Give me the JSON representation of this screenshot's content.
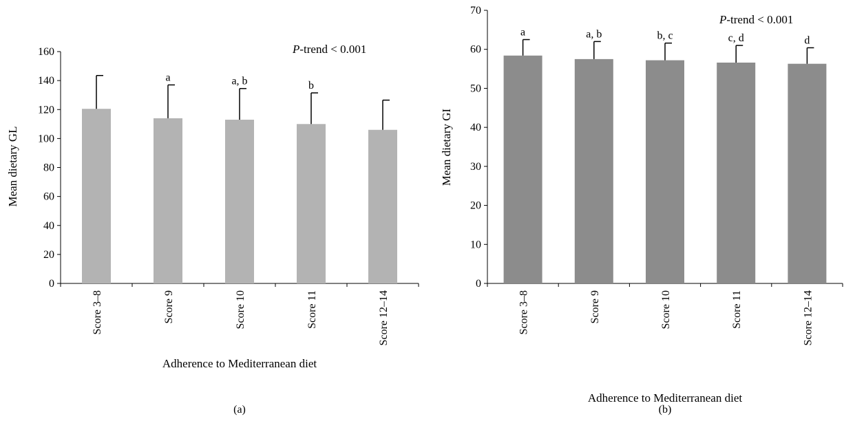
{
  "figure": {
    "panel_labels": [
      "(a)",
      "(b)"
    ]
  },
  "chart_data": [
    {
      "type": "bar",
      "panel": "(a)",
      "xlabel": "Adherence to Mediterranean diet",
      "ylabel": "Mean dietary GL",
      "categories": [
        "Score 3–8",
        "Score 9",
        "Score 10",
        "Score 11",
        "Score 12–14"
      ],
      "values": [
        120.5,
        114,
        113,
        110,
        106
      ],
      "error_upper": [
        143.5,
        137,
        134.5,
        131.5,
        126.5
      ],
      "bar_annotations": [
        "",
        "a",
        "a, b",
        "b",
        ""
      ],
      "ylim": [
        0,
        160
      ],
      "yticks": [
        0,
        20,
        40,
        60,
        80,
        100,
        120,
        140,
        160
      ],
      "annotation_prefix": "P",
      "annotation_text": "-trend < 0.001",
      "bar_color": "#b3b3b3",
      "grid": false
    },
    {
      "type": "bar",
      "panel": "(b)",
      "xlabel": "Adherence to Mediterranean diet",
      "ylabel": "Mean dietary GI",
      "categories": [
        "Score 3–8",
        "Score 9",
        "Score 10",
        "Score 11",
        "Score 12–14"
      ],
      "values": [
        58.4,
        57.5,
        57.2,
        56.6,
        56.3
      ],
      "error_upper": [
        62.5,
        62,
        61.6,
        61,
        60.4
      ],
      "bar_annotations": [
        "a",
        "a, b",
        "b, c",
        "c, d",
        "d"
      ],
      "ylim": [
        0,
        70
      ],
      "yticks": [
        0,
        10,
        20,
        30,
        40,
        50,
        60,
        70
      ],
      "annotation_prefix": "P",
      "annotation_text": "-trend < 0.001",
      "bar_color": "#8c8c8c",
      "grid": false
    }
  ]
}
